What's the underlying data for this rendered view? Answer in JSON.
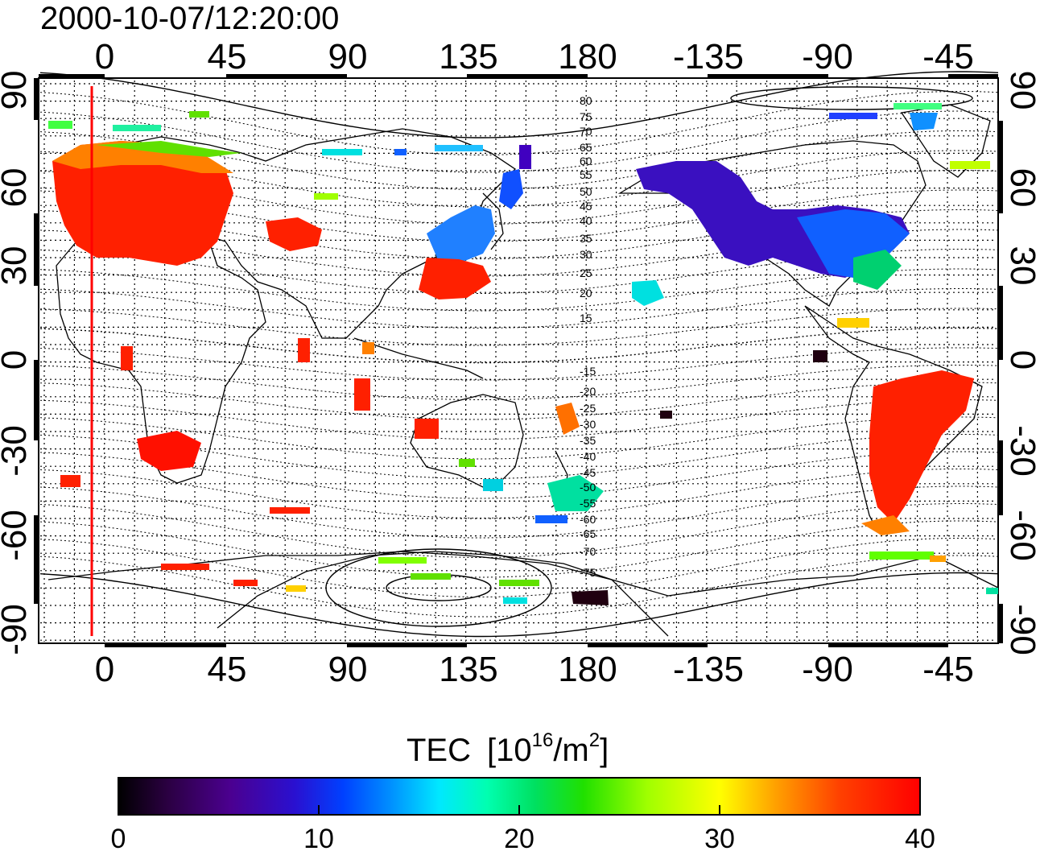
{
  "title": "2000-10-07/12:20:00",
  "colors": {
    "red_line": "#ff0000",
    "colormap": [
      "#000000",
      "#3a0060",
      "#4b00a0",
      "#2020d0",
      "#0050ff",
      "#0090ff",
      "#00e0ff",
      "#00ff90",
      "#00e000",
      "#80ff00",
      "#ffff00",
      "#ffa000",
      "#ff4000",
      "#ff0000"
    ]
  },
  "map": {
    "lon_top_labels": [
      "0",
      "45",
      "90",
      "135",
      "180",
      "-135",
      "-90",
      "-45"
    ],
    "lon_bottom_labels": [
      "0",
      "45",
      "90",
      "135",
      "180",
      "-135",
      "-90",
      "-45"
    ],
    "lat_left_labels": [
      "90",
      "60",
      "30",
      "0",
      "-30",
      "-60",
      "-90"
    ],
    "lat_right_labels": [
      "90",
      "60",
      "30",
      "0",
      "-30",
      "-60",
      "-90"
    ],
    "contour_labels_north": [
      "80",
      "75",
      "70",
      "65",
      "60",
      "55",
      "50",
      "45",
      "40",
      "35",
      "30",
      "25",
      "20",
      "15"
    ],
    "contour_labels_south": [
      "-15",
      "-20",
      "-25",
      "-30",
      "-35",
      "-40",
      "-45",
      "-50",
      "-55",
      "-60",
      "-65",
      "-70",
      "-75"
    ]
  },
  "colorbar": {
    "label": "TEC",
    "unit_prefix": "[10",
    "unit_exp": "16",
    "unit_mid": "/m",
    "unit_exp2": "2",
    "unit_suffix": "]",
    "ticks": [
      "0",
      "10",
      "20",
      "30",
      "40"
    ],
    "range": [
      0,
      40
    ]
  }
}
